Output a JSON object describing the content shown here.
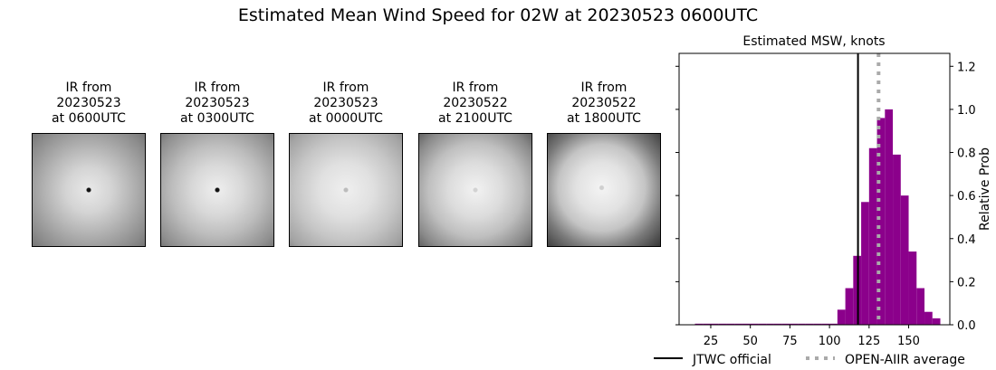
{
  "figure": {
    "title": "Estimated Mean Wind Speed for 02W at 20230523 0600UTC"
  },
  "ir_panels": [
    {
      "line1": "IR from",
      "line2": "20230523",
      "line3": "at 0600UTC",
      "eye": true
    },
    {
      "line1": "IR from",
      "line2": "20230523",
      "line3": "at 0300UTC",
      "eye": true
    },
    {
      "line1": "IR from",
      "line2": "20230523",
      "line3": "at 0000UTC",
      "eye": false
    },
    {
      "line1": "IR from",
      "line2": "20230522",
      "line3": "at 2100UTC",
      "eye": false
    },
    {
      "line1": "IR from",
      "line2": "20230522",
      "line3": "at 1800UTC",
      "eye": false
    }
  ],
  "chart_data": {
    "type": "bar",
    "title": "Estimated MSW, knots",
    "xlabel": "",
    "ylabel": "Relative Prob",
    "xlim": [
      5,
      176
    ],
    "ylim": [
      0,
      1.26
    ],
    "xticks": [
      25,
      50,
      75,
      100,
      125,
      150
    ],
    "yticks": [
      0.0,
      0.2,
      0.4,
      0.6,
      0.8,
      1.0,
      1.2
    ],
    "ytick_labels": [
      "0.0",
      "0.2",
      "0.4",
      "0.6",
      "0.8",
      "1.0",
      "1.2"
    ],
    "y_axis_side": "right",
    "bar_color": "#8b008b",
    "bin_width": 5,
    "bins_left_edges": [
      15,
      20,
      25,
      30,
      35,
      40,
      45,
      50,
      55,
      60,
      65,
      70,
      75,
      80,
      85,
      90,
      95,
      100,
      105,
      110,
      115,
      120,
      125,
      130,
      135,
      140,
      145,
      150,
      155,
      160,
      165
    ],
    "values": [
      0.005,
      0.005,
      0.005,
      0.005,
      0.005,
      0.005,
      0.005,
      0.005,
      0.005,
      0.005,
      0.005,
      0.005,
      0.005,
      0.005,
      0.005,
      0.005,
      0.005,
      0.005,
      0.07,
      0.17,
      0.32,
      0.57,
      0.82,
      0.96,
      1.0,
      0.79,
      0.6,
      0.34,
      0.17,
      0.06,
      0.03
    ],
    "jtwc_official": 118,
    "open_aiir_average": 131,
    "legend": {
      "position": "bottom",
      "items": [
        {
          "label": "JTWC official",
          "color": "#000000",
          "style": "solid"
        },
        {
          "label": "OPEN-AIIR average",
          "color": "#aaaaaa",
          "style": "dotted"
        }
      ]
    }
  }
}
